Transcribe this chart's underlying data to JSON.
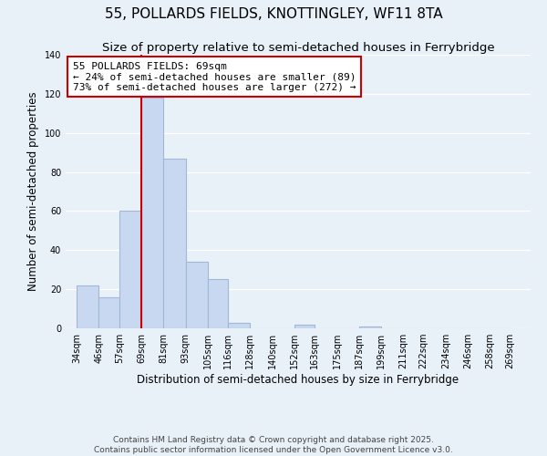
{
  "title": "55, POLLARDS FIELDS, KNOTTINGLEY, WF11 8TA",
  "subtitle": "Size of property relative to semi-detached houses in Ferrybridge",
  "xlabel": "Distribution of semi-detached houses by size in Ferrybridge",
  "ylabel": "Number of semi-detached properties",
  "bar_left_edges": [
    34,
    46,
    57,
    69,
    81,
    93,
    105,
    116,
    128,
    140,
    152,
    163,
    175,
    187,
    199,
    211,
    222,
    234,
    246,
    258
  ],
  "bar_heights": [
    22,
    16,
    60,
    118,
    87,
    34,
    25,
    3,
    0,
    0,
    2,
    0,
    0,
    1,
    0,
    0,
    0,
    0,
    0,
    0
  ],
  "bar_widths": [
    12,
    11,
    12,
    12,
    12,
    12,
    11,
    12,
    12,
    12,
    11,
    12,
    12,
    12,
    12,
    11,
    12,
    12,
    12,
    11
  ],
  "bar_color": "#c8d8f0",
  "bar_edge_color": "#a0b8d8",
  "vline_x": 69,
  "vline_color": "#cc0000",
  "ylim": [
    0,
    140
  ],
  "yticks": [
    0,
    20,
    40,
    60,
    80,
    100,
    120,
    140
  ],
  "xtick_labels": [
    "34sqm",
    "46sqm",
    "57sqm",
    "69sqm",
    "81sqm",
    "93sqm",
    "105sqm",
    "116sqm",
    "128sqm",
    "140sqm",
    "152sqm",
    "163sqm",
    "175sqm",
    "187sqm",
    "199sqm",
    "211sqm",
    "222sqm",
    "234sqm",
    "246sqm",
    "258sqm",
    "269sqm"
  ],
  "xtick_positions": [
    34,
    46,
    57,
    69,
    81,
    93,
    105,
    116,
    128,
    140,
    152,
    163,
    175,
    187,
    199,
    211,
    222,
    234,
    246,
    258,
    269
  ],
  "annotation_title": "55 POLLARDS FIELDS: 69sqm",
  "annotation_line1": "← 24% of semi-detached houses are smaller (89)",
  "annotation_line2": "73% of semi-detached houses are larger (272) →",
  "annotation_box_color": "#ffffff",
  "annotation_box_edge_color": "#cc0000",
  "footer1": "Contains HM Land Registry data © Crown copyright and database right 2025.",
  "footer2": "Contains public sector information licensed under the Open Government Licence v3.0.",
  "background_color": "#e8f0f8",
  "grid_color": "#ffffff",
  "title_fontsize": 11,
  "subtitle_fontsize": 9.5,
  "axis_label_fontsize": 8.5,
  "tick_fontsize": 7,
  "annotation_fontsize": 8,
  "footer_fontsize": 6.5
}
